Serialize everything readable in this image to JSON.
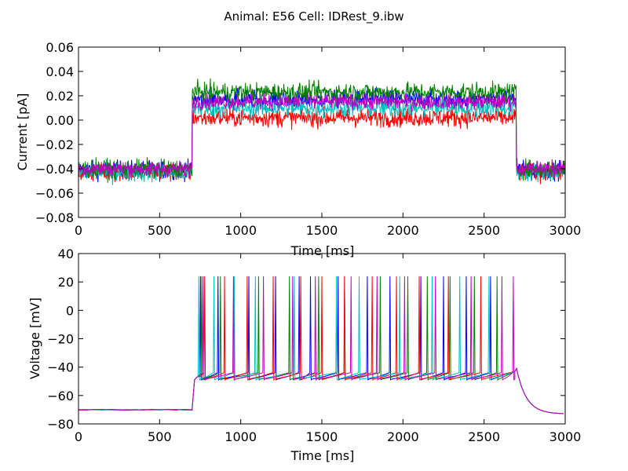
{
  "figure": {
    "title": "Animal: E56 Cell: IDRest_9.ibw"
  },
  "chart_data": [
    {
      "type": "line",
      "title": "",
      "xlabel": "Time [ms]",
      "ylabel": "Current [pA]",
      "xlim": [
        0,
        3000
      ],
      "ylim": [
        -0.08,
        0.06
      ],
      "xticks": [
        0,
        500,
        1000,
        1500,
        2000,
        2500,
        3000
      ],
      "yticks": [
        -0.08,
        -0.06,
        -0.04,
        -0.02,
        0.0,
        0.02,
        0.04,
        0.06
      ],
      "xtick_labels": [
        "0",
        "500",
        "1000",
        "1500",
        "2000",
        "2500",
        "3000"
      ],
      "ytick_labels": [
        "−0.08",
        "−0.06",
        "−0.04",
        "−0.02",
        "0.00",
        "0.02",
        "0.04",
        "0.06"
      ],
      "grid": false,
      "stimulus": {
        "onset_ms": 700,
        "offset_ms": 2700
      },
      "series": [
        {
          "color": "#0000ff",
          "baseline": -0.041,
          "step": 0.017,
          "noise": 0.0055
        },
        {
          "color": "#ff0000",
          "baseline": -0.043,
          "step": 0.002,
          "noise": 0.0055
        },
        {
          "color": "#00bfbf",
          "baseline": -0.043,
          "step": 0.01,
          "noise": 0.0055
        },
        {
          "color": "#008000",
          "baseline": -0.04,
          "step": 0.023,
          "noise": 0.0055
        },
        {
          "color": "#bf00bf",
          "baseline": -0.04,
          "step": 0.015,
          "noise": 0.0045
        }
      ]
    },
    {
      "type": "line",
      "title": "",
      "xlabel": "Time [ms]",
      "ylabel": "Voltage [mV]",
      "xlim": [
        0,
        3000
      ],
      "ylim": [
        -80,
        40
      ],
      "xticks": [
        0,
        500,
        1000,
        1500,
        2000,
        2500,
        3000
      ],
      "yticks": [
        -80,
        -60,
        -40,
        -20,
        0,
        20,
        40
      ],
      "xtick_labels": [
        "0",
        "500",
        "1000",
        "1500",
        "2000",
        "2500",
        "3000"
      ],
      "ytick_labels": [
        "−80",
        "−60",
        "−40",
        "−20",
        "0",
        "20",
        "40"
      ],
      "grid": false,
      "stimulus": {
        "onset_ms": 700,
        "offset_ms": 2700
      },
      "resting_mV": -70,
      "trough_mV": -47,
      "end_mV": -73,
      "series": [
        {
          "color": "#0000ff",
          "spike_times_ms": [
            752,
            860,
            1050,
            1215,
            1360,
            1430,
            1600,
            1780,
            1920,
            2110,
            2250,
            2390,
            2540
          ],
          "peak_mV": 24
        },
        {
          "color": "#008000",
          "spike_times_ms": [
            760,
            875,
            1110,
            1300,
            1480,
            1640,
            1860,
            2030,
            2150,
            2290,
            2440,
            2580
          ],
          "peak_mV": 24
        },
        {
          "color": "#ff0000",
          "spike_times_ms": [
            778,
            900,
            1040,
            1200,
            1370,
            1500,
            1640,
            1810,
            1960,
            2100,
            2280,
            2480
          ],
          "peak_mV": 24
        },
        {
          "color": "#00bfbf",
          "spike_times_ms": [
            742,
            835,
            960,
            1090,
            1330,
            1590,
            1730,
            1980,
            2180,
            2350,
            2530
          ],
          "peak_mV": 24
        },
        {
          "color": "#bf00bf",
          "spike_times_ms": [
            770,
            955,
            1140,
            1320,
            1460,
            1680,
            1840,
            2010,
            2200,
            2420,
            2610,
            2680
          ],
          "peak_mV": 24
        }
      ]
    }
  ]
}
